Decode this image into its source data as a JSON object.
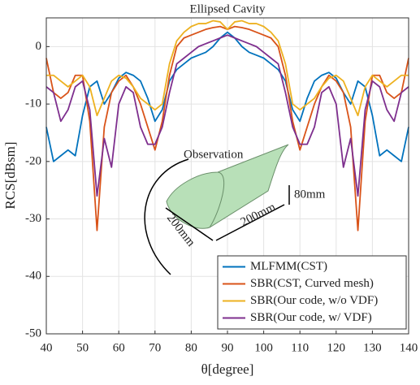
{
  "chart_data": {
    "type": "line",
    "title": "Ellipsed Cavity",
    "x_label": "θ[degree]",
    "y_label": "RCS[dBsm]",
    "x": [
      40,
      42,
      44,
      46,
      48,
      50,
      52,
      54,
      56,
      58,
      60,
      62,
      64,
      66,
      68,
      70,
      72,
      74,
      76,
      78,
      80,
      82,
      84,
      86,
      88,
      90,
      92,
      94,
      96,
      98,
      100,
      102,
      104,
      106,
      108,
      110,
      112,
      114,
      116,
      118,
      120,
      122,
      124,
      126,
      128,
      130,
      132,
      134,
      136,
      138,
      140
    ],
    "series": [
      {
        "name": "MLFMM(CST)",
        "color": "#0072bd",
        "values": [
          -14,
          -20,
          -19,
          -18,
          -19,
          -12,
          -7,
          -6,
          -10,
          -8,
          -5.5,
          -4.5,
          -5,
          -6,
          -9,
          -13,
          -11,
          -6,
          -4,
          -3,
          -2,
          -1.5,
          -1,
          0,
          1.5,
          2.5,
          1.5,
          0,
          -1,
          -1.5,
          -2,
          -3,
          -4,
          -6,
          -11,
          -13,
          -9,
          -6,
          -5,
          -4.5,
          -5.5,
          -8,
          -10,
          -6,
          -7,
          -12,
          -19,
          -18,
          -19,
          -20,
          -14
        ]
      },
      {
        "name": "SBR(CST, Curved mesh)",
        "color": "#d95319",
        "values": [
          -2,
          -8,
          -9,
          -8,
          -5,
          -5,
          -13,
          -32,
          -14,
          -8,
          -6,
          -5,
          -7,
          -10,
          -14,
          -18,
          -13,
          -5,
          0,
          1.5,
          2,
          2.5,
          3,
          3.3,
          3.5,
          3,
          3.5,
          3.3,
          3,
          2.5,
          2,
          1.5,
          0,
          -5,
          -13,
          -18,
          -14,
          -10,
          -7,
          -5,
          -6,
          -8,
          -14,
          -32,
          -13,
          -5,
          -5,
          -8,
          -9,
          -8,
          -2
        ]
      },
      {
        "name": "SBR(Our code, w/o VDF)",
        "color": "#edb120",
        "values": [
          -5,
          -5,
          -6,
          -7,
          -6,
          -5,
          -7,
          -12,
          -9,
          -6,
          -5,
          -5.5,
          -7,
          -9,
          -10,
          -11,
          -10,
          -3,
          1,
          2.5,
          3.5,
          4,
          4,
          4.5,
          4.3,
          3,
          4.3,
          4.5,
          4,
          4,
          3.5,
          2.5,
          1,
          -3,
          -10,
          -11,
          -10,
          -9,
          -7,
          -5.5,
          -5,
          -6,
          -9,
          -12,
          -7,
          -5,
          -6,
          -7,
          -6,
          -5,
          -5
        ]
      },
      {
        "name": "SBR(Our code, w/ VDF)",
        "color": "#7e2f8e",
        "values": [
          -7,
          -8,
          -13,
          -11,
          -7,
          -6,
          -11,
          -26,
          -16,
          -21,
          -10,
          -7,
          -8,
          -14,
          -17,
          -17,
          -14,
          -8,
          -3,
          -2,
          -1,
          0,
          0.5,
          1,
          1.5,
          2,
          1.5,
          1,
          0.5,
          0,
          -1,
          -2,
          -3,
          -8,
          -14,
          -17,
          -17,
          -14,
          -8,
          -7,
          -10,
          -21,
          -16,
          -26,
          -11,
          -6,
          -7,
          -11,
          -13,
          -8,
          -7
        ]
      }
    ],
    "xlim": [
      40,
      140
    ],
    "xticks": [
      40,
      50,
      60,
      70,
      80,
      90,
      100,
      110,
      120,
      130,
      140
    ],
    "ylim": [
      -50,
      5
    ],
    "yticks": [
      -50,
      -40,
      -30,
      -20,
      -10,
      0
    ],
    "grid": true,
    "legend": "lower right",
    "annotations": [
      "Observation",
      "80mm",
      "200mm",
      "200mm"
    ]
  }
}
